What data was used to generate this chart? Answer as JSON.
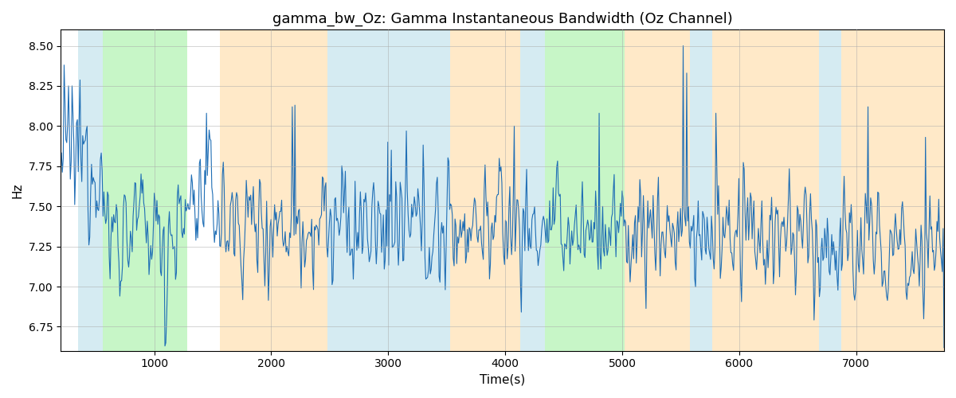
{
  "title": "gamma_bw_Oz: Gamma Instantaneous Bandwidth (Oz Channel)",
  "xlabel": "Time(s)",
  "ylabel": "Hz",
  "xlim": [
    200,
    7750
  ],
  "ylim": [
    6.6,
    8.6
  ],
  "yticks": [
    6.75,
    7.0,
    7.25,
    7.5,
    7.75,
    8.0,
    8.25,
    8.5
  ],
  "line_color": "#1f6eb5",
  "line_width": 0.8,
  "bg_color": "#ffffff",
  "grid_color": "#aaaaaa",
  "title_fontsize": 13,
  "label_fontsize": 11,
  "bands": [
    {
      "xmin": 350,
      "xmax": 560,
      "color": "#add8e6",
      "alpha": 0.5
    },
    {
      "xmin": 560,
      "xmax": 1280,
      "color": "#90ee90",
      "alpha": 0.5
    },
    {
      "xmin": 1560,
      "xmax": 2480,
      "color": "#ffdba4",
      "alpha": 0.6
    },
    {
      "xmin": 2480,
      "xmax": 3530,
      "color": "#add8e6",
      "alpha": 0.5
    },
    {
      "xmin": 3530,
      "xmax": 4130,
      "color": "#ffdba4",
      "alpha": 0.6
    },
    {
      "xmin": 4130,
      "xmax": 4340,
      "color": "#add8e6",
      "alpha": 0.5
    },
    {
      "xmin": 4340,
      "xmax": 5020,
      "color": "#90ee90",
      "alpha": 0.5
    },
    {
      "xmin": 5020,
      "xmax": 5580,
      "color": "#ffdba4",
      "alpha": 0.6
    },
    {
      "xmin": 5580,
      "xmax": 5770,
      "color": "#add8e6",
      "alpha": 0.5
    },
    {
      "xmin": 5770,
      "xmax": 6680,
      "color": "#ffdba4",
      "alpha": 0.6
    },
    {
      "xmin": 6680,
      "xmax": 6870,
      "color": "#add8e6",
      "alpha": 0.5
    },
    {
      "xmin": 6870,
      "xmax": 7750,
      "color": "#ffdba4",
      "alpha": 0.6
    }
  ],
  "seed": 12345,
  "n_points": 1000,
  "t_start": 200,
  "t_end": 7750
}
